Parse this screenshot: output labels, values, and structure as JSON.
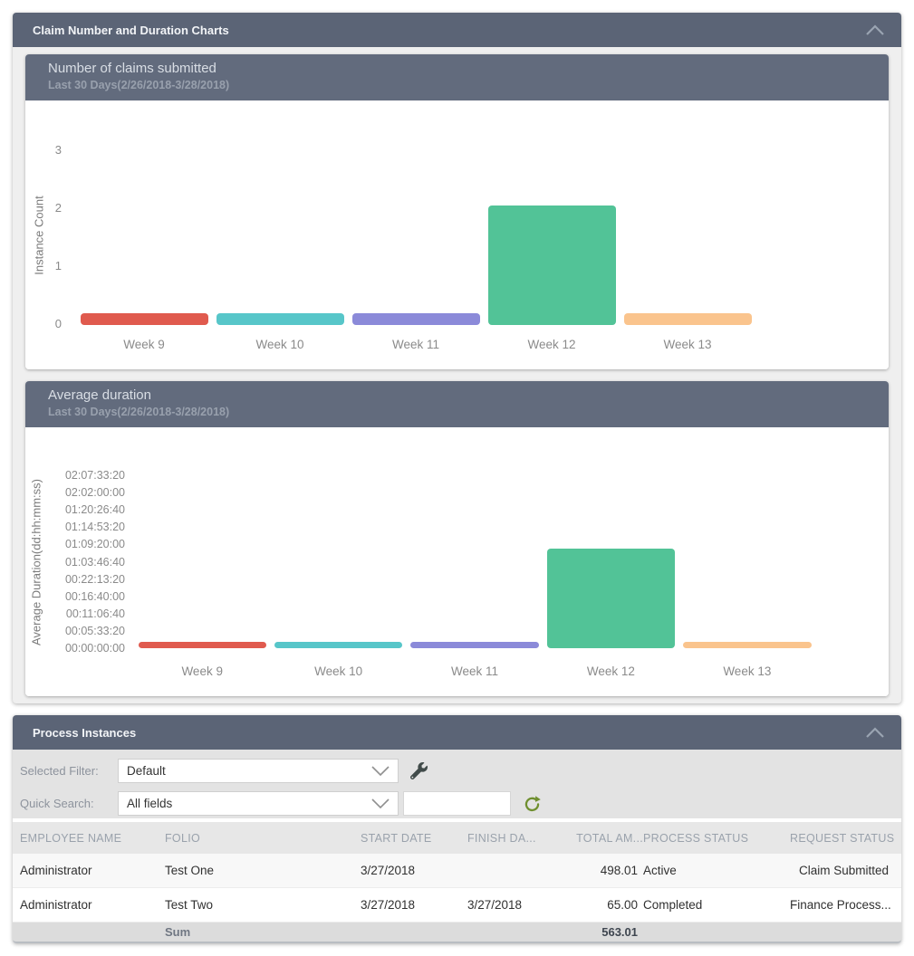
{
  "charts_panel": {
    "title": "Claim Number and Duration Charts",
    "collapse_icon": "chevron-up-icon"
  },
  "chart_data": [
    {
      "type": "bar",
      "title": "Number of claims submitted",
      "subtitle": "Last 30 Days(2/26/2018-3/28/2018)",
      "categories": [
        "Week 9",
        "Week 10",
        "Week 11",
        "Week 12",
        "Week 13"
      ],
      "values": [
        0,
        0,
        0,
        2,
        0
      ],
      "ylabel": "Instance Count",
      "yticks": [
        0,
        1,
        2,
        3
      ],
      "ylim": [
        0,
        3
      ],
      "grid": false,
      "legend": "none",
      "bar_colors": [
        "#e05a4e",
        "#57c6c9",
        "#8b8ad9",
        "#52c397",
        "#fac48d"
      ]
    },
    {
      "type": "bar",
      "title": "Average duration",
      "subtitle": "Last 30 Days(2/26/2018-3/28/2018)",
      "categories": [
        "Week 9",
        "Week 10",
        "Week 11",
        "Week 12",
        "Week 13"
      ],
      "values_seconds": [
        0,
        0,
        0,
        115000,
        0
      ],
      "ylabel": "Average Duration(dd:hh:mm:ss)",
      "ytick_labels": [
        "00:00:00:00",
        "00:05:33:20",
        "00:11:06:40",
        "00:16:40:00",
        "00:22:13:20",
        "01:03:46:40",
        "01:09:20:00",
        "01:14:53:20",
        "01:20:26:40",
        "02:02:00:00",
        "02:07:33:20"
      ],
      "ylim_seconds": [
        0,
        200000
      ],
      "grid": false,
      "legend": "none",
      "bar_colors": [
        "#e05a4e",
        "#57c6c9",
        "#8b8ad9",
        "#52c397",
        "#fac48d"
      ]
    }
  ],
  "process_panel": {
    "title": "Process Instances",
    "collapse_icon": "chevron-up-icon",
    "filters": {
      "selected_filter_label": "Selected Filter:",
      "selected_filter_value": "Default",
      "filter_settings_icon": "wrench-icon",
      "quick_search_label": "Quick Search:",
      "quick_search_value": "All fields",
      "search_input_value": "",
      "refresh_icon": "refresh-icon",
      "refresh_color": "#6f8f2f",
      "wrench_color": "#414b4a"
    },
    "table": {
      "headers": [
        "EMPLOYEE NAME",
        "FOLIO",
        "START DATE",
        "FINISH DA...",
        "TOTAL AM...",
        "PROCESS STATUS",
        "REQUEST STATUS"
      ],
      "right_aligned_columns": [
        4,
        6
      ],
      "rows": [
        [
          "Administrator",
          "Test One",
          "3/27/2018",
          "",
          "498.01",
          "Active",
          "Claim Submitted"
        ],
        [
          "Administrator",
          "Test Two",
          "3/27/2018",
          "3/27/2018",
          "65.00",
          "Completed",
          "Finance Process..."
        ]
      ],
      "sum_label": "Sum",
      "sum_total": "563.01"
    }
  },
  "colors": {
    "panel_header_bg": "#5b6476",
    "card_header_bg": "#626b7d",
    "panel_body_bg": "#efefef",
    "filter_area_bg": "#e3e3e3"
  }
}
